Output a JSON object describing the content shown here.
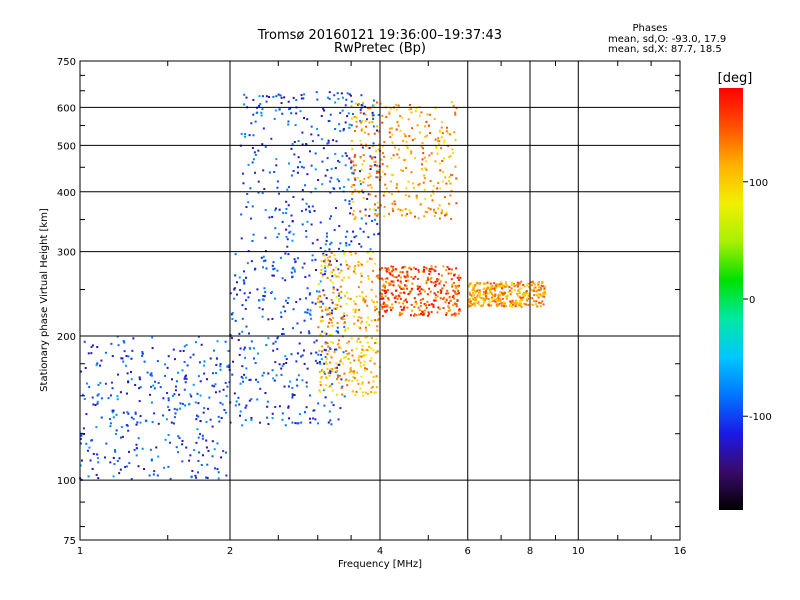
{
  "chart_data": {
    "type": "scatter",
    "title": "Tromsø 20160121 19:36:00–19:37:43",
    "subtitle": "RwPretec (Bp)",
    "xlabel": "Frequency [MHz]",
    "ylabel": "Stationary phase Virtual Height [km]",
    "x_scale": "log",
    "y_scale": "log",
    "xlim": [
      1,
      16
    ],
    "ylim": [
      75,
      750
    ],
    "x_ticks": [
      "1",
      "2",
      "4",
      "6",
      "8",
      "10",
      "16"
    ],
    "x_tick_values": [
      1,
      2,
      4,
      6,
      8,
      10,
      16
    ],
    "y_ticks": [
      "75",
      "100",
      "200",
      "300",
      "400",
      "500",
      "600",
      "750"
    ],
    "y_tick_values": [
      75,
      100,
      200,
      300,
      400,
      500,
      600,
      750
    ],
    "grid": true,
    "stats_header": "Phases",
    "stats_o": "mean, sd,O: -93.0, 17.9",
    "stats_x": "mean, sd,X:  87.7, 18.5",
    "colorbar": {
      "label": "[deg]",
      "range": [
        -180,
        180
      ],
      "ticks": [
        "100",
        "0",
        "-100"
      ],
      "tick_values": [
        100,
        0,
        -100
      ],
      "colors": [
        "#000000",
        "#3a0a6a",
        "#1a1ae6",
        "#0077ff",
        "#00c8ff",
        "#00e8a0",
        "#00e000",
        "#a8f000",
        "#f0f000",
        "#ffb000",
        "#ff5000",
        "#ff0000"
      ]
    },
    "clusters": [
      {
        "x": [
          1.0,
          2.0
        ],
        "y": [
          100,
          200
        ],
        "phase": -100
      },
      {
        "x": [
          2.0,
          3.4
        ],
        "y": [
          130,
          300
        ],
        "phase": -100
      },
      {
        "x": [
          2.1,
          4.0
        ],
        "y": [
          300,
          650
        ],
        "phase": -100
      },
      {
        "x": [
          3.0,
          4.0
        ],
        "y": [
          150,
          300
        ],
        "phase": 110
      },
      {
        "x": [
          3.5,
          5.7
        ],
        "y": [
          350,
          620
        ],
        "phase": 120
      },
      {
        "x": [
          4.0,
          5.8
        ],
        "y": [
          220,
          280
        ],
        "phase": 150
      },
      {
        "x": [
          6.0,
          8.6
        ],
        "y": [
          230,
          260
        ],
        "phase": 120
      }
    ]
  }
}
